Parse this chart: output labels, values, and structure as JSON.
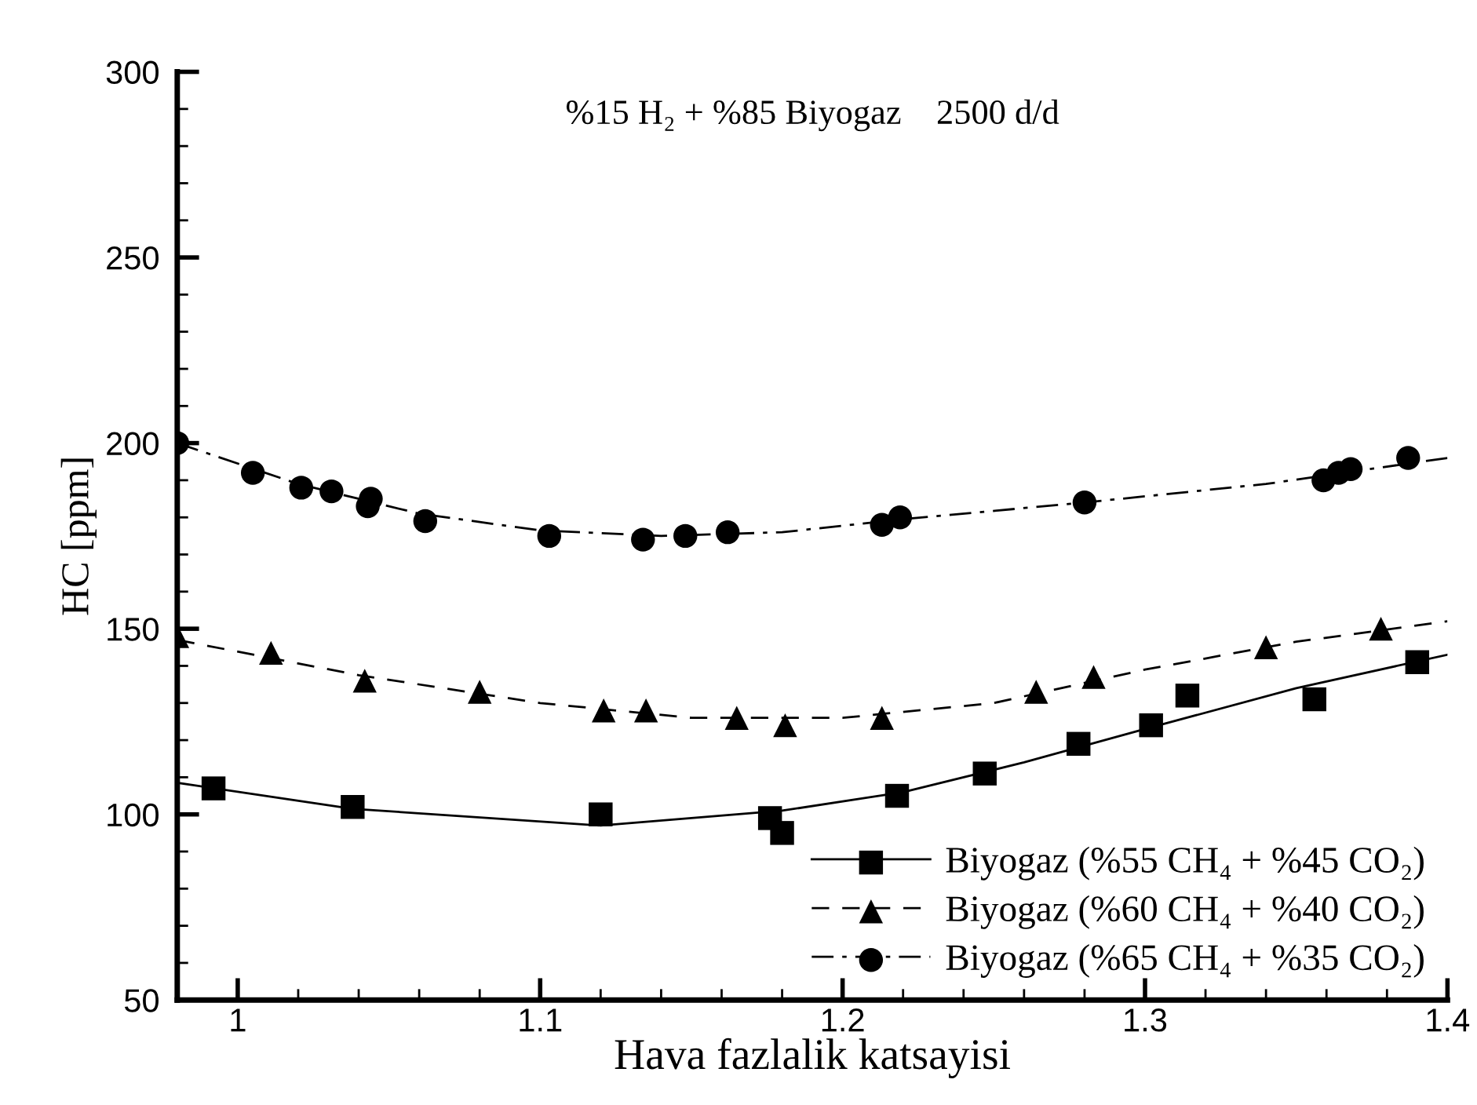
{
  "chart_data": {
    "type": "scatter",
    "title": "%15 H₂ + %85 Biyogaz    2500 d/d",
    "xlabel": "Hava fazlalik katsayisi",
    "ylabel": "HC [ppm]",
    "xlim": [
      0.98,
      1.4
    ],
    "ylim": [
      50,
      300
    ],
    "xticks": [
      1,
      {
        "value": 1.02,
        "label": null
      },
      {
        "value": 1.04,
        "label": null
      },
      {
        "value": 1.06,
        "label": null
      },
      {
        "value": 1.08,
        "label": null
      },
      1.1,
      {
        "value": 1.12,
        "label": null
      },
      {
        "value": 1.14,
        "label": null
      },
      {
        "value": 1.16,
        "label": null
      },
      {
        "value": 1.18,
        "label": null
      },
      1.2,
      {
        "value": 1.22,
        "label": null
      },
      {
        "value": 1.24,
        "label": null
      },
      {
        "value": 1.26,
        "label": null
      },
      {
        "value": 1.28,
        "label": null
      },
      1.3,
      {
        "value": 1.32,
        "label": null
      },
      {
        "value": 1.34,
        "label": null
      },
      {
        "value": 1.36,
        "label": null
      },
      {
        "value": 1.38,
        "label": null
      },
      1.4
    ],
    "yticks": [
      50,
      {
        "value": 60,
        "label": null
      },
      {
        "value": 70,
        "label": null
      },
      {
        "value": 80,
        "label": null
      },
      {
        "value": 90,
        "label": null
      },
      100,
      {
        "value": 110,
        "label": null
      },
      {
        "value": 120,
        "label": null
      },
      {
        "value": 130,
        "label": null
      },
      {
        "value": 140,
        "label": null
      },
      150,
      {
        "value": 160,
        "label": null
      },
      {
        "value": 170,
        "label": null
      },
      {
        "value": 180,
        "label": null
      },
      {
        "value": 190,
        "label": null
      },
      200,
      {
        "value": 210,
        "label": null
      },
      {
        "value": 220,
        "label": null
      },
      {
        "value": 230,
        "label": null
      },
      {
        "value": 240,
        "label": null
      },
      250,
      {
        "value": 260,
        "label": null
      },
      {
        "value": 270,
        "label": null
      },
      {
        "value": 280,
        "label": null
      },
      {
        "value": 290,
        "label": null
      },
      300
    ],
    "grid": false,
    "legend": "bottom right",
    "series": [
      {
        "name": "Biyogaz (%55 CH₄ + %45 CO₂)",
        "marker": "square",
        "color": "#000000",
        "x": [
          0.992,
          1.038,
          1.12,
          1.176,
          1.18,
          1.218,
          1.247,
          1.278,
          1.302,
          1.314,
          1.356,
          1.39
        ],
        "values": [
          107,
          102,
          100,
          99,
          95,
          105,
          111,
          119,
          124,
          132,
          131,
          141
        ]
      },
      {
        "type": "line",
        "line_style": "solid",
        "marker": "none",
        "color": "#000000",
        "x": [
          0.98,
          1.038,
          1.12,
          1.18,
          1.22,
          1.26,
          1.3,
          1.35,
          1.4
        ],
        "values": [
          108.5,
          101.5,
          97,
          101,
          106,
          114,
          123,
          134,
          143
        ]
      },
      {
        "name": "Biyogaz (%60 CH₄ + %40 CO₂)",
        "marker": "triangle",
        "color": "#000000",
        "x": [
          0.98,
          1.011,
          1.042,
          1.08,
          1.121,
          1.135,
          1.165,
          1.181,
          1.213,
          1.264,
          1.283,
          1.34,
          1.378
        ],
        "values": [
          148,
          143.5,
          136,
          133,
          128,
          128,
          126,
          124,
          126,
          133,
          137,
          145,
          150
        ]
      },
      {
        "type": "line",
        "line_style": "dashed",
        "marker": "none",
        "color": "#000000",
        "x": [
          0.98,
          1.04,
          1.1,
          1.15,
          1.2,
          1.25,
          1.3,
          1.35,
          1.4
        ],
        "values": [
          147,
          137.5,
          130,
          126,
          126,
          130,
          139,
          146.5,
          152
        ]
      },
      {
        "name": "Biyogaz (%65 CH₄ + %35 CO₂)",
        "marker": "circle",
        "color": "#000000",
        "x": [
          0.98,
          1.005,
          1.021,
          1.031,
          1.044,
          1.043,
          1.062,
          1.103,
          1.134,
          1.148,
          1.162,
          1.213,
          1.219,
          1.28,
          1.359,
          1.364,
          1.368,
          1.387
        ],
        "values": [
          200,
          192,
          188,
          187,
          185,
          183,
          179,
          175,
          174,
          175,
          176,
          178,
          180,
          184,
          190,
          192,
          193,
          196
        ]
      },
      {
        "type": "line",
        "line_style": "dashdot",
        "marker": "none",
        "color": "#000000",
        "x": [
          0.98,
          1.02,
          1.06,
          1.1,
          1.14,
          1.18,
          1.22,
          1.28,
          1.34,
          1.4
        ],
        "values": [
          200,
          189,
          181,
          176.5,
          175,
          176,
          179.5,
          184,
          189,
          196
        ]
      }
    ]
  }
}
